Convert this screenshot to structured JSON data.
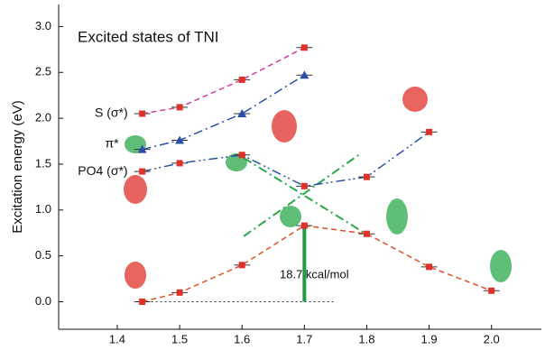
{
  "chart_data": {
    "type": "line",
    "title": "Excited states of TNI",
    "y_label": "Excitation energy (eV)",
    "annotation": "18.7 kcal/mol",
    "xlim": [
      1.306,
      2.08
    ],
    "ylim": [
      -0.3,
      3.24
    ],
    "xticks": [
      1.4,
      1.5,
      1.6,
      1.7,
      1.8,
      1.9,
      {
        "value": 2.0,
        "label": "2.0"
      }
    ],
    "yticks": [
      {
        "value": 0,
        "label": "0.0"
      },
      0.5,
      {
        "value": 1,
        "label": "1.0"
      },
      1.5,
      {
        "value": 2,
        "label": "2.0"
      },
      2.5,
      {
        "value": 3,
        "label": "3.0"
      }
    ],
    "series": [
      {
        "name": "S (σ*)",
        "color": "#d63a9a",
        "marker_color": "#e0302a",
        "x": [
          1.44,
          1.5,
          1.6,
          1.7
        ],
        "values": [
          2.05,
          2.12,
          2.42,
          2.77
        ]
      },
      {
        "name": "π*",
        "color": "#2a4fa8",
        "marker_color": "#2a4fa8",
        "x": [
          1.44,
          1.5,
          1.6,
          1.7
        ],
        "values": [
          1.66,
          1.76,
          2.05,
          2.47
        ]
      },
      {
        "name": "PO4 (σ*)",
        "color": "#2a4fa8",
        "marker_color": "#e0302a",
        "x": [
          1.44,
          1.5,
          1.6,
          1.7,
          1.8,
          1.9
        ],
        "values": [
          1.42,
          1.51,
          1.6,
          1.26,
          1.36,
          1.85
        ]
      },
      {
        "name": null,
        "color": "#e0502a",
        "marker_color": "#e0302a",
        "x": [
          1.44,
          1.5,
          1.6,
          1.7,
          1.8,
          1.9,
          2.0
        ],
        "values": [
          0.0,
          0.1,
          0.4,
          0.83,
          0.74,
          0.38,
          0.12
        ]
      }
    ]
  }
}
